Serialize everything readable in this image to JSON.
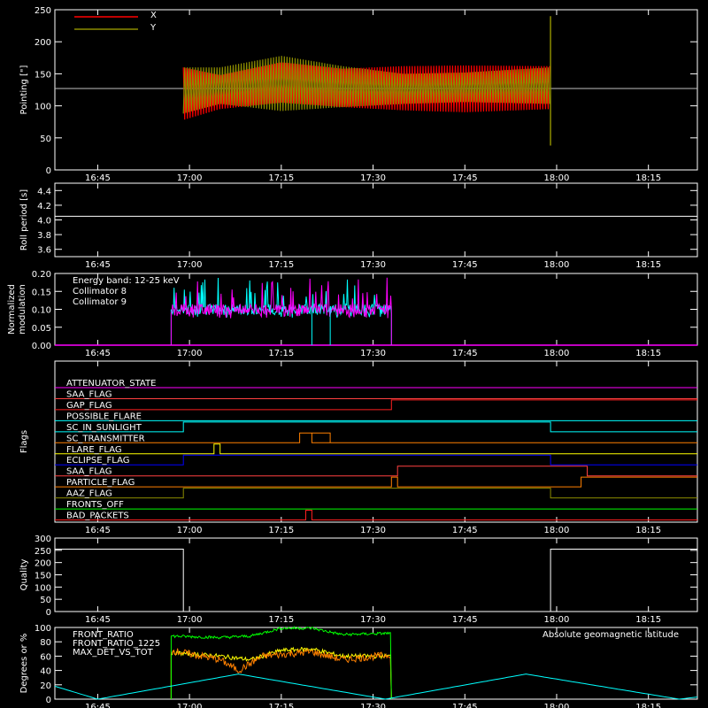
{
  "x_ticks": [
    "16:45",
    "17:00",
    "17:15",
    "17:30",
    "17:45",
    "18:00",
    "18:15"
  ],
  "chart_data": [
    {
      "panel": "pointing",
      "type": "line",
      "ylabel": "Pointing [\"]",
      "ylim": [
        0,
        250
      ],
      "yticks": [
        "0",
        "50",
        "100",
        "150",
        "200",
        "250"
      ],
      "legend": [
        {
          "name": "X",
          "color": "#ff0000"
        },
        {
          "name": "Y",
          "color": "#8c8c00"
        }
      ],
      "reference_level": 127,
      "data_start": "16:59",
      "data_end": "17:59",
      "x_envelope": {
        "times": [
          "16:59",
          "17:05",
          "17:15",
          "17:25",
          "17:35",
          "17:45",
          "17:59"
        ],
        "low": [
          78,
          95,
          105,
          98,
          93,
          90,
          95
        ],
        "high": [
          160,
          148,
          168,
          158,
          162,
          163,
          162
        ]
      },
      "y_envelope": {
        "times": [
          "16:59",
          "17:05",
          "17:15",
          "17:25",
          "17:35",
          "17:45",
          "17:59"
        ],
        "low": [
          88,
          103,
          92,
          98,
          103,
          106,
          103
        ],
        "high": [
          160,
          160,
          178,
          162,
          150,
          152,
          160
        ]
      },
      "spikes": [
        {
          "time": "17:59",
          "min": 38,
          "max": 240
        }
      ]
    },
    {
      "panel": "roll_period",
      "type": "line",
      "ylabel": "Roll period [s]",
      "ylim": [
        3.5,
        4.5
      ],
      "yticks": [
        "3.6",
        "3.8",
        "4.0",
        "4.2",
        "4.4"
      ],
      "value": 4.05
    },
    {
      "panel": "modulation",
      "type": "line",
      "ylabel": "Normalized modulation",
      "ylim": [
        0,
        0.2
      ],
      "yticks": [
        "0.00",
        "0.05",
        "0.10",
        "0.15",
        "0.20"
      ],
      "legend": [
        {
          "name": "Energy band: 12-25 keV",
          "color": "#ffffff"
        },
        {
          "name": "Collimator 8",
          "color": "#00ffff"
        },
        {
          "name": "Collimator 9",
          "color": "#ff00ff"
        }
      ],
      "active_start": "16:57",
      "active_end": "17:33",
      "mean": 0.1,
      "spread_low": 0.085,
      "spread_high": 0.13
    },
    {
      "panel": "flags",
      "type": "line",
      "ylabel": "Flags",
      "flags": [
        {
          "name": "ATTENUATOR_STATE",
          "color": "#ff00ff",
          "transitions": []
        },
        {
          "name": "SAA_FLAG",
          "color": "#ff4040",
          "transitions": []
        },
        {
          "name": "GAP_FLAG",
          "color": "#ff2020",
          "transitions": [
            "17:33"
          ]
        },
        {
          "name": "POSSIBLE_FLARE",
          "color": "#00ffff",
          "transitions": []
        },
        {
          "name": "SC_IN_SUNLIGHT",
          "color": "#00ffff",
          "transitions": [
            "16:59",
            "17:59"
          ]
        },
        {
          "name": "SC_TRANSMITTER",
          "color": "#ff8000",
          "transitions": [
            "17:18",
            "17:23",
            "17:20",
            "17:23"
          ]
        },
        {
          "name": "FLARE_FLAG",
          "color": "#ffff00",
          "transitions": [
            "17:04",
            "17:05"
          ]
        },
        {
          "name": "ECLIPSE_FLAG",
          "color": "#0000ff",
          "transitions": [
            "16:59",
            "17:59"
          ]
        },
        {
          "name": "SAA_FLAG",
          "color": "#ff4040",
          "transitions": [
            "17:34",
            "18:05"
          ]
        },
        {
          "name": "PARTICLE_FLAG",
          "color": "#ff8000",
          "transitions": [
            "17:33",
            "17:34",
            "18:04"
          ]
        },
        {
          "name": "AAZ_FLAG",
          "color": "#8c8c00",
          "transitions": [
            "16:59",
            "17:59"
          ]
        },
        {
          "name": "FRONTS_OFF",
          "color": "#00ff00",
          "transitions": []
        },
        {
          "name": "BAD_PACKETS",
          "color": "#ff2020",
          "transitions": [
            "17:19",
            "17:20"
          ]
        }
      ]
    },
    {
      "panel": "quality",
      "type": "line",
      "ylabel": "Quality",
      "ylim": [
        0,
        300
      ],
      "yticks": [
        "0",
        "50",
        "100",
        "150",
        "200",
        "250",
        "300"
      ],
      "segments": [
        {
          "start": "16:38",
          "end": "16:59",
          "value": 255
        },
        {
          "start": "16:59",
          "end": "17:59",
          "value": 0
        },
        {
          "start": "17:59",
          "end": "18:23",
          "value": 255
        }
      ]
    },
    {
      "panel": "ratios",
      "type": "line",
      "ylabel": "Degrees or %",
      "ylim": [
        0,
        100
      ],
      "yticks": [
        "0",
        "20",
        "40",
        "60",
        "80",
        "100"
      ],
      "legend": [
        {
          "name": "FRONT_RATIO",
          "color": "#ffff00"
        },
        {
          "name": "FRONT_RATIO_1225",
          "color": "#00ff00"
        },
        {
          "name": "MAX_DET_VS_TOT",
          "color": "#ff8000"
        }
      ],
      "latitude_label": "Absolute geomagnetic latitude",
      "latitude_color": "#00ffff",
      "active_start": "16:57",
      "active_end": "17:33",
      "front_ratio": {
        "times": [
          "16:57",
          "17:05",
          "17:10",
          "17:15",
          "17:20",
          "17:25",
          "17:33"
        ],
        "values": [
          65,
          60,
          55,
          68,
          70,
          60,
          60
        ]
      },
      "front_ratio_1225": {
        "times": [
          "16:57",
          "17:05",
          "17:10",
          "17:15",
          "17:20",
          "17:25",
          "17:33"
        ],
        "values": [
          88,
          86,
          88,
          99,
          99,
          90,
          92
        ]
      },
      "max_det_vs_tot": {
        "times": [
          "16:57",
          "17:05",
          "17:08",
          "17:12",
          "17:20",
          "17:25",
          "17:33"
        ],
        "values": [
          68,
          55,
          40,
          60,
          66,
          55,
          62
        ]
      },
      "latitude": {
        "times": [
          "16:38",
          "16:45",
          "17:08",
          "17:32",
          "17:55",
          "18:20",
          "18:23"
        ],
        "values": [
          18,
          0,
          35,
          0,
          35,
          0,
          3
        ]
      }
    }
  ]
}
